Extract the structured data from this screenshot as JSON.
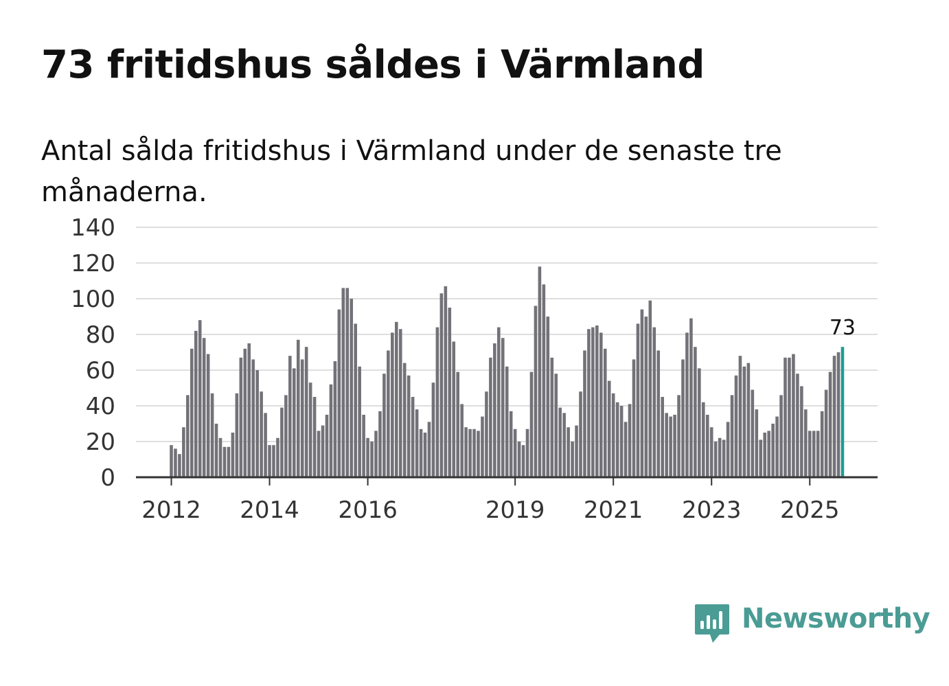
{
  "header": {
    "title": "73 fritidshus såldes i Värmland",
    "subtitle": "Antal sålda fritidshus i Värmland under de senaste tre månaderna."
  },
  "brand": {
    "name": "Newsworthy",
    "color": "#4a9c94"
  },
  "chart_data": {
    "type": "bar",
    "title": "73 fritidshus såldes i Värmland",
    "subtitle": "Antal sålda fritidshus i Värmland under de senaste tre månaderna.",
    "xlabel": "",
    "ylabel": "",
    "ylim": [
      0,
      140
    ],
    "yticks": [
      0,
      20,
      40,
      60,
      80,
      100,
      120,
      140
    ],
    "xtick_labels": [
      "2012",
      "2014",
      "2016",
      "2019",
      "2021",
      "2023",
      "2025"
    ],
    "grid": true,
    "bar_color": "#737278",
    "highlight_color": "#1f9d94",
    "last_value_label": "73",
    "start": "2012-01",
    "categories": [
      "2012-01",
      "2012-02",
      "2012-03",
      "2012-04",
      "2012-05",
      "2012-06",
      "2012-07",
      "2012-08",
      "2012-09",
      "2012-10",
      "2012-11",
      "2012-12",
      "2013-01",
      "2013-02",
      "2013-03",
      "2013-04",
      "2013-05",
      "2013-06",
      "2013-07",
      "2013-08",
      "2013-09",
      "2013-10",
      "2013-11",
      "2013-12",
      "2014-01",
      "2014-02",
      "2014-03",
      "2014-04",
      "2014-05",
      "2014-06",
      "2014-07",
      "2014-08",
      "2014-09",
      "2014-10",
      "2014-11",
      "2014-12",
      "2015-01",
      "2015-02",
      "2015-03",
      "2015-04",
      "2015-05",
      "2015-06",
      "2015-07",
      "2015-08",
      "2015-09",
      "2015-10",
      "2015-11",
      "2015-12",
      "2016-01",
      "2016-02",
      "2016-03",
      "2016-04",
      "2016-05",
      "2016-06",
      "2016-07",
      "2016-08",
      "2016-09",
      "2016-10",
      "2016-11",
      "2016-12",
      "2017-01",
      "2017-02",
      "2017-03",
      "2017-04",
      "2017-05",
      "2017-06",
      "2017-07",
      "2017-08",
      "2017-09",
      "2017-10",
      "2017-11",
      "2017-12",
      "2018-01",
      "2018-02",
      "2018-03",
      "2018-04",
      "2018-05",
      "2018-06",
      "2018-07",
      "2018-08",
      "2018-09",
      "2018-10",
      "2018-11",
      "2018-12",
      "2019-01",
      "2019-02",
      "2019-03",
      "2019-04",
      "2019-05",
      "2019-06",
      "2019-07",
      "2019-08",
      "2019-09",
      "2019-10",
      "2019-11",
      "2019-12",
      "2020-01",
      "2020-02",
      "2020-03",
      "2020-04",
      "2020-05",
      "2020-06",
      "2020-07",
      "2020-08",
      "2020-09",
      "2020-10",
      "2020-11",
      "2020-12",
      "2021-01",
      "2021-02",
      "2021-03",
      "2021-04",
      "2021-05",
      "2021-06",
      "2021-07",
      "2021-08",
      "2021-09",
      "2021-10",
      "2021-11",
      "2021-12",
      "2022-01",
      "2022-02",
      "2022-03",
      "2022-04",
      "2022-05",
      "2022-06",
      "2022-07",
      "2022-08",
      "2022-09",
      "2022-10",
      "2022-11",
      "2022-12",
      "2023-01",
      "2023-02",
      "2023-03",
      "2023-04",
      "2023-05",
      "2023-06",
      "2023-07",
      "2023-08",
      "2023-09",
      "2023-10",
      "2023-11",
      "2023-12",
      "2024-01",
      "2024-02",
      "2024-03",
      "2024-04",
      "2024-05",
      "2024-06",
      "2024-07",
      "2024-08",
      "2024-09",
      "2024-10",
      "2024-11",
      "2024-12",
      "2025-01",
      "2025-02",
      "2025-03",
      "2025-04",
      "2025-05",
      "2025-06",
      "2025-07",
      "2025-08",
      "2025-09"
    ],
    "values": [
      18,
      16,
      13,
      28,
      46,
      72,
      82,
      88,
      78,
      69,
      47,
      30,
      22,
      17,
      17,
      25,
      47,
      67,
      72,
      75,
      66,
      60,
      48,
      36,
      18,
      18,
      22,
      39,
      46,
      68,
      61,
      77,
      66,
      73,
      53,
      45,
      26,
      29,
      35,
      52,
      65,
      94,
      106,
      106,
      100,
      86,
      62,
      35,
      22,
      20,
      26,
      37,
      58,
      71,
      81,
      87,
      83,
      64,
      57,
      45,
      38,
      27,
      25,
      31,
      53,
      84,
      103,
      107,
      95,
      76,
      59,
      41,
      28,
      27,
      27,
      26,
      34,
      48,
      67,
      75,
      84,
      78,
      62,
      37,
      27,
      20,
      18,
      27,
      59,
      96,
      118,
      108,
      90,
      67,
      58,
      39,
      36,
      28,
      20,
      29,
      48,
      71,
      83,
      84,
      85,
      81,
      72,
      54,
      47,
      42,
      40,
      31,
      41,
      66,
      86,
      94,
      90,
      99,
      84,
      71,
      45,
      36,
      34,
      35,
      46,
      66,
      81,
      89,
      73,
      61,
      42,
      35,
      28,
      20,
      22,
      21,
      31,
      46,
      57,
      68,
      62,
      64,
      49,
      38,
      21,
      25,
      26,
      30,
      34,
      46,
      67,
      67,
      69,
      58,
      51,
      38,
      26,
      26,
      26,
      37,
      49,
      59,
      68,
      70,
      73
    ]
  }
}
